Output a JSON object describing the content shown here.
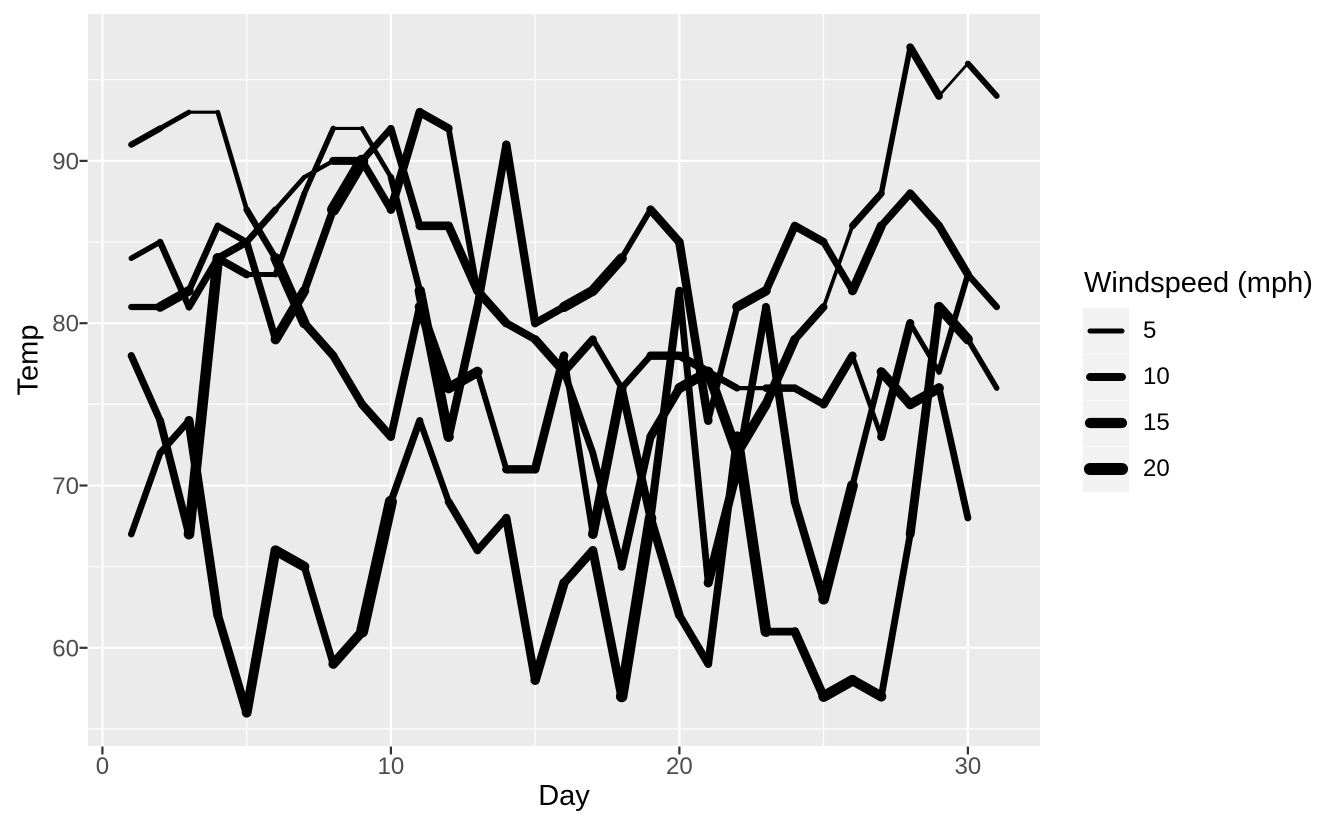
{
  "chart_data": {
    "type": "line",
    "title": "",
    "xlabel": "Day",
    "ylabel": "Temp",
    "xlim": [
      -0.5,
      32.5
    ],
    "ylim": [
      53.95,
      99.05
    ],
    "grid": true,
    "x_major_ticks": [
      {
        "value": 0,
        "label": "0"
      },
      {
        "value": 10,
        "label": "10"
      },
      {
        "value": 20,
        "label": "20"
      },
      {
        "value": 30,
        "label": "30"
      }
    ],
    "y_major_ticks": [
      {
        "value": 60,
        "label": "60"
      },
      {
        "value": 70,
        "label": "70"
      },
      {
        "value": 80,
        "label": "80"
      },
      {
        "value": 90,
        "label": "90"
      }
    ],
    "x_minor_ticks": [
      5,
      15,
      25
    ],
    "y_minor_ticks": [
      55,
      65,
      75,
      85,
      95
    ],
    "size_scale": {
      "domain": [
        1.7,
        20.7
      ],
      "range_mm": [
        1,
        6
      ]
    },
    "legend": {
      "title": "Windspeed (mph)",
      "position": "right",
      "entries": [
        {
          "label": "5",
          "value": 5
        },
        {
          "label": "10",
          "value": 10
        },
        {
          "label": "15",
          "value": 15
        },
        {
          "label": "20",
          "value": 20
        }
      ]
    },
    "series": [
      {
        "days": [
          1,
          2,
          3,
          4,
          5,
          6,
          7,
          8,
          9,
          10,
          11,
          12,
          13,
          14,
          15,
          16,
          17,
          18,
          19,
          20,
          21,
          22,
          23,
          24,
          25,
          26,
          27,
          28,
          29,
          30,
          31
        ],
        "temps": [
          67,
          72,
          74,
          62,
          56,
          66,
          65,
          59,
          61,
          69,
          74,
          69,
          66,
          68,
          58,
          64,
          66,
          57,
          68,
          62,
          59,
          73,
          61,
          61,
          57,
          58,
          57,
          67,
          81,
          79,
          76
        ],
        "windspeeds": [
          7.4,
          8.0,
          12.6,
          11.5,
          14.3,
          14.9,
          8.6,
          13.8,
          20.1,
          8.6,
          6.9,
          9.7,
          9.2,
          10.9,
          13.2,
          11.5,
          12.0,
          18.4,
          11.5,
          9.7,
          9.7,
          16.6,
          9.7,
          12.0,
          16.6,
          14.9,
          8.0,
          12.0,
          14.9,
          5.7,
          7.4
        ]
      },
      {
        "days": [
          1,
          2,
          3,
          4,
          5,
          6,
          7,
          8,
          9,
          10,
          11,
          12,
          13,
          14,
          15,
          16,
          17,
          18,
          19,
          20,
          21,
          22,
          23,
          24,
          25,
          26,
          27,
          28,
          29,
          30
        ],
        "temps": [
          78,
          74,
          67,
          84,
          85,
          79,
          82,
          87,
          90,
          87,
          93,
          92,
          82,
          80,
          79,
          77,
          72,
          65,
          73,
          76,
          77,
          76,
          76,
          76,
          75,
          78,
          73,
          80,
          77,
          83
        ],
        "windspeeds": [
          8.6,
          9.7,
          16.1,
          9.2,
          8.6,
          14.3,
          9.7,
          20.7,
          9.2,
          11.5,
          10.3,
          6.3,
          1.7,
          4.6,
          6.3,
          8.0,
          8.0,
          10.3,
          11.5,
          14.9,
          8.0,
          4.1,
          9.2,
          9.2,
          10.9,
          4.6,
          10.9,
          5.1,
          6.3,
          5.7
        ]
      },
      {
        "days": [
          1,
          2,
          3,
          4,
          5,
          6,
          7,
          8,
          9,
          10,
          11,
          12,
          13,
          14,
          15,
          16,
          17,
          18,
          19,
          20,
          21,
          22,
          23,
          24,
          25,
          26,
          27,
          28,
          29,
          30,
          31
        ],
        "temps": [
          84,
          85,
          81,
          84,
          83,
          83,
          88,
          92,
          92,
          89,
          82,
          73,
          81,
          91,
          80,
          81,
          82,
          84,
          87,
          85,
          74,
          81,
          82,
          86,
          85,
          82,
          86,
          88,
          86,
          83,
          81
        ],
        "windspeeds": [
          5.7,
          7.4,
          8.6,
          9.7,
          5.1,
          6.3,
          5.7,
          2.8,
          4.6,
          7.4,
          15.5,
          10.9,
          10.3,
          10.9,
          9.7,
          14.9,
          15.5,
          6.3,
          10.9,
          11.5,
          6.9,
          13.8,
          10.3,
          10.3,
          8.0,
          12.6,
          9.2,
          10.3,
          10.3,
          7.4,
          8.0
        ]
      },
      {
        "days": [
          1,
          2,
          3,
          4,
          5,
          6,
          7,
          8,
          9,
          10,
          11,
          12,
          13,
          14,
          15,
          16,
          17,
          18,
          19,
          20,
          21,
          22,
          23,
          24,
          25,
          26,
          27,
          28,
          29,
          30,
          31
        ],
        "temps": [
          81,
          81,
          82,
          86,
          85,
          87,
          89,
          90,
          90,
          92,
          86,
          86,
          82,
          80,
          79,
          77,
          79,
          76,
          78,
          78,
          77,
          72,
          75,
          79,
          81,
          86,
          88,
          97,
          94,
          96,
          94
        ],
        "windspeeds": [
          6.9,
          13.8,
          7.4,
          6.9,
          7.4,
          4.6,
          4.0,
          10.3,
          8.0,
          8.6,
          11.5,
          11.5,
          11.5,
          9.7,
          11.5,
          10.3,
          6.3,
          7.4,
          10.9,
          10.3,
          15.5,
          14.3,
          12.6,
          9.7,
          3.4,
          8.0,
          5.7,
          9.7,
          2.3,
          6.3,
          6.3
        ]
      },
      {
        "days": [
          1,
          2,
          3,
          4,
          5,
          6,
          7,
          8,
          9,
          10,
          11,
          12,
          13,
          14,
          15,
          16,
          17,
          18,
          19,
          20,
          21,
          22,
          23,
          24,
          25,
          26,
          27,
          28,
          29,
          30
        ],
        "temps": [
          91,
          92,
          93,
          93,
          87,
          84,
          80,
          78,
          75,
          73,
          81,
          76,
          77,
          71,
          71,
          78,
          67,
          76,
          68,
          82,
          64,
          71,
          81,
          69,
          63,
          70,
          77,
          75,
          76,
          68
        ],
        "windspeeds": [
          6.9,
          5.1,
          2.8,
          4.6,
          7.4,
          15.5,
          10.9,
          10.3,
          10.9,
          9.7,
          14.9,
          15.5,
          6.3,
          10.9,
          11.5,
          6.9,
          13.8,
          10.3,
          10.3,
          8.0,
          12.6,
          9.2,
          10.3,
          10.3,
          16.6,
          6.9,
          13.2,
          14.3,
          8.0,
          11.5
        ]
      }
    ],
    "colors": {
      "line": "#000000",
      "panel_background": "#EBEBEB",
      "gridline": "#FFFFFF",
      "tick_label": "#4D4D4D",
      "tick_mark": "#333333",
      "axis_title": "#000000",
      "legend_key_background": "#F2F2F2",
      "figure_background": "#FFFFFF"
    }
  }
}
